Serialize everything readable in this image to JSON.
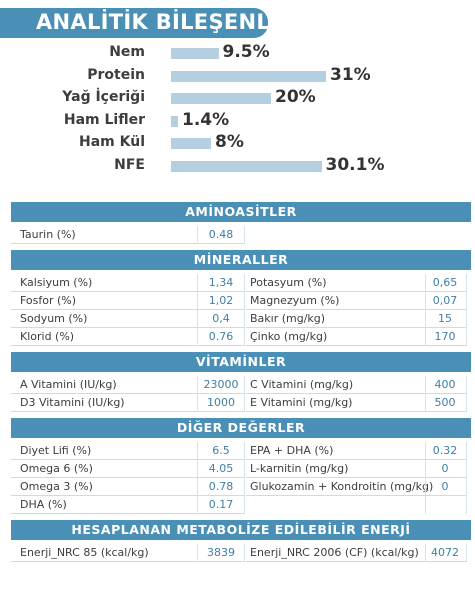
{
  "title": "ANALİTİK BİLEŞENLER",
  "chart_data": {
    "type": "bar",
    "categories": [
      "Nem",
      "Protein",
      "Yağ İçeriği",
      "Ham Lifler",
      "Ham Kül",
      "NFE"
    ],
    "values": [
      9.5,
      31,
      20,
      1.4,
      8,
      30.1
    ],
    "value_labels": [
      "9.5%",
      "31%",
      "20%",
      "1.4%",
      "8%",
      "30.1%"
    ],
    "xlim": [
      0,
      31
    ],
    "title": "",
    "xlabel": "",
    "ylabel": "",
    "colors": {
      "bar": "#b4d0e0"
    }
  },
  "sections": [
    {
      "title": "AMİNOASİTLER",
      "rows": [
        {
          "left_label": "Taurin (%)",
          "left_value": "0.48"
        }
      ]
    },
    {
      "title": "MİNERALLER",
      "rows": [
        {
          "left_label": "Kalsiyum (%)",
          "left_value": "1,34",
          "right_label": "Potasyum (%)",
          "right_value": "0,65"
        },
        {
          "left_label": "Fosfor (%)",
          "left_value": "1,02",
          "right_label": "Magnezyum (%)",
          "right_value": "0,07"
        },
        {
          "left_label": "Sodyum (%)",
          "left_value": "0,4",
          "right_label": "Bakır (mg/kg)",
          "right_value": "15"
        },
        {
          "left_label": "Klorid (%)",
          "left_value": "0.76",
          "right_label": "Çinko (mg/kg)",
          "right_value": "170"
        }
      ]
    },
    {
      "title": "VİTAMİNLER",
      "rows": [
        {
          "left_label": "A Vitamini (IU/kg)",
          "left_value": "23000",
          "right_label": "C Vitamini (mg/kg)",
          "right_value": "400"
        },
        {
          "left_label": "D3 Vitamini (IU/kg)",
          "left_value": "1000",
          "right_label": "E Vitamini (mg/kg)",
          "right_value": "500"
        }
      ]
    },
    {
      "title": "DİĞER DEĞERLER",
      "rows": [
        {
          "left_label": "Diyet Lifi (%)",
          "left_value": "6.5",
          "right_label": "EPA + DHA (%)",
          "right_value": "0.32"
        },
        {
          "left_label": "Omega 6 (%)",
          "left_value": "4.05",
          "right_label": "L-karnitin (mg/kg)",
          "right_value": "0"
        },
        {
          "left_label": "Omega 3 (%)",
          "left_value": "0.78",
          "right_label": "Glukozamin + Kondroitin (mg/kg)",
          "right_value": "0"
        },
        {
          "left_label": "DHA (%)",
          "left_value": "0.17"
        }
      ]
    },
    {
      "title": "HESAPLANAN METABOLİZE EDİLEBİLİR ENERJİ",
      "rows": [
        {
          "left_label": "Enerji_NRC 85 (kcal/kg)",
          "left_value": "3839",
          "right_label": "Enerji_NRC 2006 (CF) (kcal/kg)",
          "right_value": "4072"
        }
      ]
    }
  ]
}
